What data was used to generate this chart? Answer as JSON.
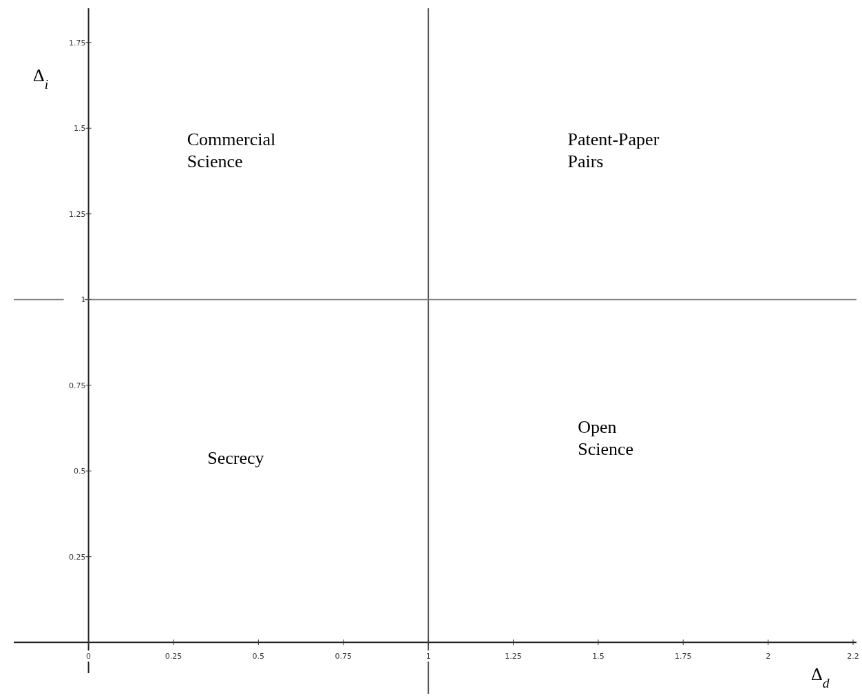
{
  "chart_data": {
    "type": "scatter",
    "xlabel": "Δ$_{d}$",
    "ylabel": "Δ$_{i}$",
    "xlim": [
      -0.22,
      2.26
    ],
    "ylim": [
      -0.09,
      1.85
    ],
    "xticks": [
      0,
      0.25,
      0.5,
      0.75,
      1,
      1.25,
      1.5,
      1.75,
      2,
      {
        "value": 2.25,
        "label": "2.2"
      }
    ],
    "yticks": [
      0.25,
      0.5,
      0.75,
      1,
      1.25,
      1.5,
      1.75
    ],
    "ref_lines": [
      {
        "axis": "x",
        "value": 1,
        "color": "#555555"
      },
      {
        "axis": "y",
        "value": 1,
        "color": "#777777"
      }
    ],
    "annotations": [
      "Commercial Science",
      "Patent-Paper Pairs",
      "Secrecy",
      "Open Science"
    ]
  }
}
